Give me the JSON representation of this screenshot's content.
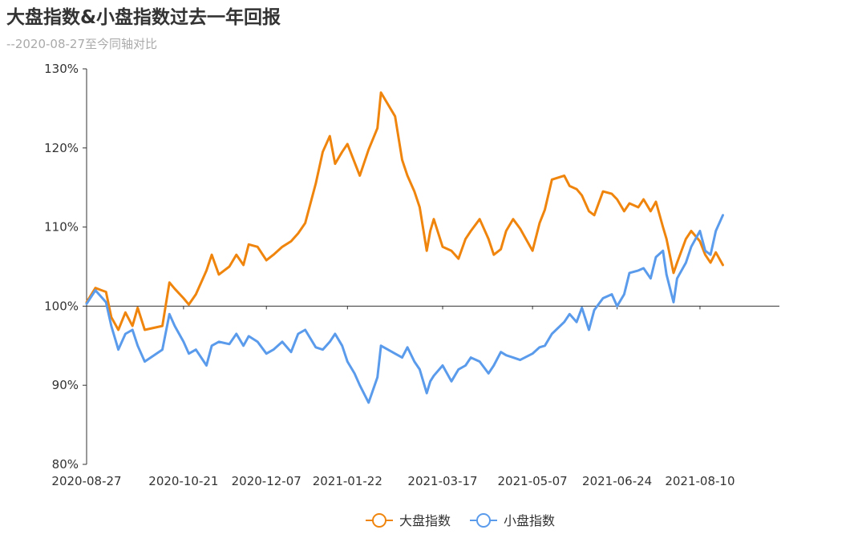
{
  "title": "大盘指数&小盘指数过去一年回报",
  "subtitle": "--2020-08-27至今同轴对比",
  "chart_data": {
    "type": "line",
    "title": "大盘指数&小盘指数过去一年回报",
    "subtitle": "--2020-08-27至今同轴对比",
    "ylim": [
      80,
      130
    ],
    "y_ticks": [
      "80%",
      "90%",
      "100%",
      "110%",
      "120%",
      "130%"
    ],
    "x_ticks": [
      "2020-08-27",
      "2020-10-21",
      "2020-12-07",
      "2021-01-22",
      "2021-03-17",
      "2021-05-07",
      "2021-06-24",
      "2021-08-10"
    ],
    "grid": false,
    "legend_position": "bottom-center",
    "series": [
      {
        "name": "大盘指数",
        "color": "#f0850e",
        "points": [
          [
            "2020-08-27",
            100.5
          ],
          [
            "2020-09-01",
            102.3
          ],
          [
            "2020-09-07",
            101.8
          ],
          [
            "2020-09-10",
            98.6
          ],
          [
            "2020-09-14",
            97.0
          ],
          [
            "2020-09-18",
            99.2
          ],
          [
            "2020-09-22",
            97.5
          ],
          [
            "2020-09-25",
            99.8
          ],
          [
            "2020-09-29",
            97.0
          ],
          [
            "2020-10-09",
            97.5
          ],
          [
            "2020-10-13",
            103.0
          ],
          [
            "2020-10-16",
            102.2
          ],
          [
            "2020-10-21",
            101.0
          ],
          [
            "2020-10-24",
            100.2
          ],
          [
            "2020-10-28",
            101.5
          ],
          [
            "2020-11-03",
            104.5
          ],
          [
            "2020-11-06",
            106.5
          ],
          [
            "2020-11-10",
            104.0
          ],
          [
            "2020-11-16",
            105.0
          ],
          [
            "2020-11-20",
            106.5
          ],
          [
            "2020-11-24",
            105.2
          ],
          [
            "2020-11-27",
            107.8
          ],
          [
            "2020-12-02",
            107.5
          ],
          [
            "2020-12-07",
            105.8
          ],
          [
            "2020-12-11",
            106.5
          ],
          [
            "2020-12-16",
            107.5
          ],
          [
            "2020-12-21",
            108.2
          ],
          [
            "2020-12-25",
            109.2
          ],
          [
            "2020-12-29",
            110.5
          ],
          [
            "2021-01-04",
            115.5
          ],
          [
            "2021-01-08",
            119.5
          ],
          [
            "2021-01-12",
            121.5
          ],
          [
            "2021-01-15",
            118.0
          ],
          [
            "2021-01-19",
            119.5
          ],
          [
            "2021-01-22",
            120.5
          ],
          [
            "2021-01-26",
            118.2
          ],
          [
            "2021-01-29",
            116.5
          ],
          [
            "2021-02-03",
            119.8
          ],
          [
            "2021-02-08",
            122.5
          ],
          [
            "2021-02-10",
            127.0
          ],
          [
            "2021-02-18",
            124.0
          ],
          [
            "2021-02-22",
            118.5
          ],
          [
            "2021-02-25",
            116.5
          ],
          [
            "2021-03-01",
            114.5
          ],
          [
            "2021-03-04",
            112.5
          ],
          [
            "2021-03-08",
            107.0
          ],
          [
            "2021-03-10",
            109.5
          ],
          [
            "2021-03-12",
            111.0
          ],
          [
            "2021-03-17",
            107.5
          ],
          [
            "2021-03-22",
            107.0
          ],
          [
            "2021-03-26",
            106.0
          ],
          [
            "2021-03-30",
            108.5
          ],
          [
            "2021-04-02",
            109.5
          ],
          [
            "2021-04-07",
            111.0
          ],
          [
            "2021-04-12",
            108.5
          ],
          [
            "2021-04-15",
            106.5
          ],
          [
            "2021-04-19",
            107.2
          ],
          [
            "2021-04-22",
            109.5
          ],
          [
            "2021-04-26",
            111.0
          ],
          [
            "2021-04-30",
            109.8
          ],
          [
            "2021-05-07",
            107.0
          ],
          [
            "2021-05-11",
            110.5
          ],
          [
            "2021-05-14",
            112.2
          ],
          [
            "2021-05-18",
            116.0
          ],
          [
            "2021-05-25",
            116.5
          ],
          [
            "2021-05-28",
            115.2
          ],
          [
            "2021-06-01",
            114.8
          ],
          [
            "2021-06-04",
            114.0
          ],
          [
            "2021-06-08",
            112.0
          ],
          [
            "2021-06-11",
            111.5
          ],
          [
            "2021-06-16",
            114.5
          ],
          [
            "2021-06-21",
            114.2
          ],
          [
            "2021-06-24",
            113.5
          ],
          [
            "2021-06-28",
            112.0
          ],
          [
            "2021-07-01",
            113.0
          ],
          [
            "2021-07-06",
            112.5
          ],
          [
            "2021-07-09",
            113.5
          ],
          [
            "2021-07-13",
            112.0
          ],
          [
            "2021-07-16",
            113.2
          ],
          [
            "2021-07-20",
            110.0
          ],
          [
            "2021-07-22",
            108.5
          ],
          [
            "2021-07-26",
            104.2
          ],
          [
            "2021-07-28",
            105.5
          ],
          [
            "2021-08-02",
            108.5
          ],
          [
            "2021-08-05",
            109.5
          ],
          [
            "2021-08-10",
            108.2
          ],
          [
            "2021-08-13",
            106.5
          ],
          [
            "2021-08-16",
            105.5
          ],
          [
            "2021-08-19",
            106.8
          ],
          [
            "2021-08-23",
            105.2
          ]
        ]
      },
      {
        "name": "小盘指数",
        "color": "#5b9bec",
        "points": [
          [
            "2020-08-27",
            100.3
          ],
          [
            "2020-09-01",
            102.0
          ],
          [
            "2020-09-07",
            100.5
          ],
          [
            "2020-09-10",
            97.5
          ],
          [
            "2020-09-14",
            94.5
          ],
          [
            "2020-09-18",
            96.5
          ],
          [
            "2020-09-22",
            97.0
          ],
          [
            "2020-09-25",
            95.0
          ],
          [
            "2020-09-29",
            93.0
          ],
          [
            "2020-10-09",
            94.5
          ],
          [
            "2020-10-13",
            99.0
          ],
          [
            "2020-10-16",
            97.5
          ],
          [
            "2020-10-21",
            95.5
          ],
          [
            "2020-10-24",
            94.0
          ],
          [
            "2020-10-28",
            94.5
          ],
          [
            "2020-11-03",
            92.5
          ],
          [
            "2020-11-06",
            95.0
          ],
          [
            "2020-11-10",
            95.5
          ],
          [
            "2020-11-16",
            95.2
          ],
          [
            "2020-11-20",
            96.5
          ],
          [
            "2020-11-24",
            95.0
          ],
          [
            "2020-11-27",
            96.2
          ],
          [
            "2020-12-02",
            95.5
          ],
          [
            "2020-12-07",
            94.0
          ],
          [
            "2020-12-11",
            94.5
          ],
          [
            "2020-12-16",
            95.5
          ],
          [
            "2020-12-21",
            94.2
          ],
          [
            "2020-12-25",
            96.5
          ],
          [
            "2020-12-29",
            97.0
          ],
          [
            "2021-01-04",
            94.8
          ],
          [
            "2021-01-08",
            94.5
          ],
          [
            "2021-01-12",
            95.5
          ],
          [
            "2021-01-15",
            96.5
          ],
          [
            "2021-01-19",
            95.0
          ],
          [
            "2021-01-22",
            93.0
          ],
          [
            "2021-01-26",
            91.5
          ],
          [
            "2021-01-29",
            90.0
          ],
          [
            "2021-02-03",
            87.8
          ],
          [
            "2021-02-08",
            91.0
          ],
          [
            "2021-02-10",
            95.0
          ],
          [
            "2021-02-18",
            94.0
          ],
          [
            "2021-02-22",
            93.5
          ],
          [
            "2021-02-25",
            94.8
          ],
          [
            "2021-03-01",
            93.0
          ],
          [
            "2021-03-04",
            92.0
          ],
          [
            "2021-03-08",
            89.0
          ],
          [
            "2021-03-10",
            90.5
          ],
          [
            "2021-03-12",
            91.2
          ],
          [
            "2021-03-17",
            92.5
          ],
          [
            "2021-03-22",
            90.5
          ],
          [
            "2021-03-26",
            92.0
          ],
          [
            "2021-03-30",
            92.5
          ],
          [
            "2021-04-02",
            93.5
          ],
          [
            "2021-04-07",
            93.0
          ],
          [
            "2021-04-12",
            91.5
          ],
          [
            "2021-04-15",
            92.5
          ],
          [
            "2021-04-19",
            94.2
          ],
          [
            "2021-04-22",
            93.8
          ],
          [
            "2021-04-26",
            93.5
          ],
          [
            "2021-04-30",
            93.2
          ],
          [
            "2021-05-07",
            94.0
          ],
          [
            "2021-05-11",
            94.8
          ],
          [
            "2021-05-14",
            95.0
          ],
          [
            "2021-05-18",
            96.5
          ],
          [
            "2021-05-25",
            98.0
          ],
          [
            "2021-05-28",
            99.0
          ],
          [
            "2021-06-01",
            98.0
          ],
          [
            "2021-06-04",
            99.8
          ],
          [
            "2021-06-08",
            97.0
          ],
          [
            "2021-06-11",
            99.5
          ],
          [
            "2021-06-16",
            101.0
          ],
          [
            "2021-06-21",
            101.5
          ],
          [
            "2021-06-24",
            100.0
          ],
          [
            "2021-06-28",
            101.5
          ],
          [
            "2021-07-01",
            104.2
          ],
          [
            "2021-07-06",
            104.5
          ],
          [
            "2021-07-09",
            104.8
          ],
          [
            "2021-07-13",
            103.5
          ],
          [
            "2021-07-16",
            106.2
          ],
          [
            "2021-07-20",
            107.0
          ],
          [
            "2021-07-22",
            104.0
          ],
          [
            "2021-07-26",
            100.5
          ],
          [
            "2021-07-28",
            103.5
          ],
          [
            "2021-08-02",
            105.5
          ],
          [
            "2021-08-05",
            107.5
          ],
          [
            "2021-08-10",
            109.5
          ],
          [
            "2021-08-13",
            107.0
          ],
          [
            "2021-08-16",
            106.5
          ],
          [
            "2021-08-19",
            109.5
          ],
          [
            "2021-08-23",
            111.5
          ]
        ]
      }
    ]
  }
}
